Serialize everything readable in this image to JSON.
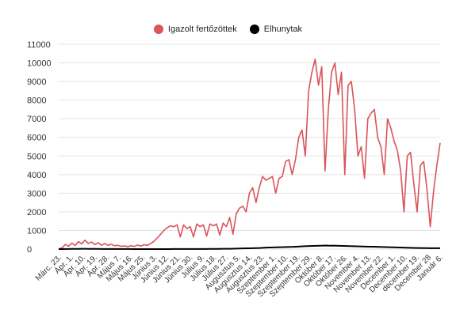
{
  "chart_data": {
    "type": "line",
    "title": "",
    "xlabel": "",
    "ylabel": "",
    "ylim": [
      0,
      11000
    ],
    "yticks": [
      "0",
      "1000",
      "2000",
      "3000",
      "4000",
      "5000",
      "6000",
      "7000",
      "8000",
      "9000",
      "10000",
      "11000"
    ],
    "grid": true,
    "legend": "top-center",
    "x_tick_labels": [
      "Márc. 23.",
      "Ápr. 1.",
      "Ápr. 10.",
      "Ápr. 19.",
      "Ápr. 28.",
      "Május 7.",
      "Május 16.",
      "Május 25.",
      "Június 3.",
      "Június 12.",
      "Június 21.",
      "Június 30.",
      "Július 9.",
      "Július 18.",
      "Július 27.",
      "Augusztus 5.",
      "Augusztus 14.",
      "Augusztus 23.",
      "Szeptember 1.",
      "Szeptember 10.",
      "Szeptember 19.",
      "Szeptember 29.",
      "Október 8.",
      "Október 17.",
      "Október 26.",
      "November 4.",
      "November 13.",
      "November 22.",
      "December 1.",
      "December 10.",
      "december 19.",
      "December 28",
      "Január 6."
    ],
    "series": [
      {
        "name": "Igazolt fertőzöttek",
        "color": "#d9545b",
        "values": [
          20,
          60,
          250,
          150,
          320,
          200,
          400,
          280,
          480,
          300,
          380,
          240,
          340,
          200,
          300,
          200,
          260,
          180,
          200,
          150,
          170,
          130,
          180,
          140,
          220,
          160,
          240,
          200,
          300,
          420,
          600,
          800,
          1000,
          1150,
          1250,
          1200,
          1300,
          650,
          1300,
          1100,
          1200,
          650,
          1350,
          1200,
          1300,
          700,
          1350,
          1250,
          1350,
          750,
          1400,
          1200,
          1700,
          800,
          1900,
          2200,
          2300,
          2000,
          3000,
          3300,
          2500,
          3300,
          3900,
          3700,
          3800,
          3900,
          3000,
          3800,
          3900,
          4700,
          4800,
          4000,
          4800,
          6000,
          6400,
          5000,
          8500,
          9500,
          10200,
          8800,
          9800,
          4200,
          7500,
          9500,
          10000,
          8300,
          9500,
          4000,
          8800,
          9000,
          7500,
          5000,
          5500,
          3800,
          7000,
          7300,
          7500,
          6000,
          5500,
          4000,
          7000,
          6500,
          5800,
          5300,
          4200,
          2000,
          5000,
          5200,
          3500,
          2000,
          4500,
          4700,
          3200,
          1200,
          3100,
          4500,
          5700
        ]
      },
      {
        "name": "Elhunytak",
        "color": "#000000",
        "values": [
          0,
          0,
          3,
          5,
          8,
          10,
          12,
          15,
          14,
          12,
          10,
          9,
          8,
          7,
          6,
          5,
          5,
          4,
          4,
          3,
          3,
          3,
          2,
          2,
          2,
          2,
          2,
          2,
          2,
          2,
          2,
          2,
          2,
          2,
          3,
          3,
          3,
          3,
          4,
          4,
          5,
          5,
          6,
          6,
          7,
          8,
          9,
          10,
          12,
          14,
          16,
          18,
          20,
          25,
          30,
          35,
          40,
          45,
          50,
          55,
          60,
          70,
          80,
          85,
          90,
          95,
          100,
          105,
          110,
          115,
          120,
          130,
          140,
          150,
          160,
          165,
          170,
          175,
          180,
          185,
          190,
          180,
          185,
          180,
          175,
          170,
          165,
          160,
          155,
          150,
          145,
          140,
          135,
          130,
          125,
          120,
          115,
          110,
          105,
          100,
          95,
          90,
          85,
          80,
          75,
          70,
          65,
          60,
          60,
          55,
          55,
          50,
          50,
          50,
          50
        ]
      }
    ]
  }
}
